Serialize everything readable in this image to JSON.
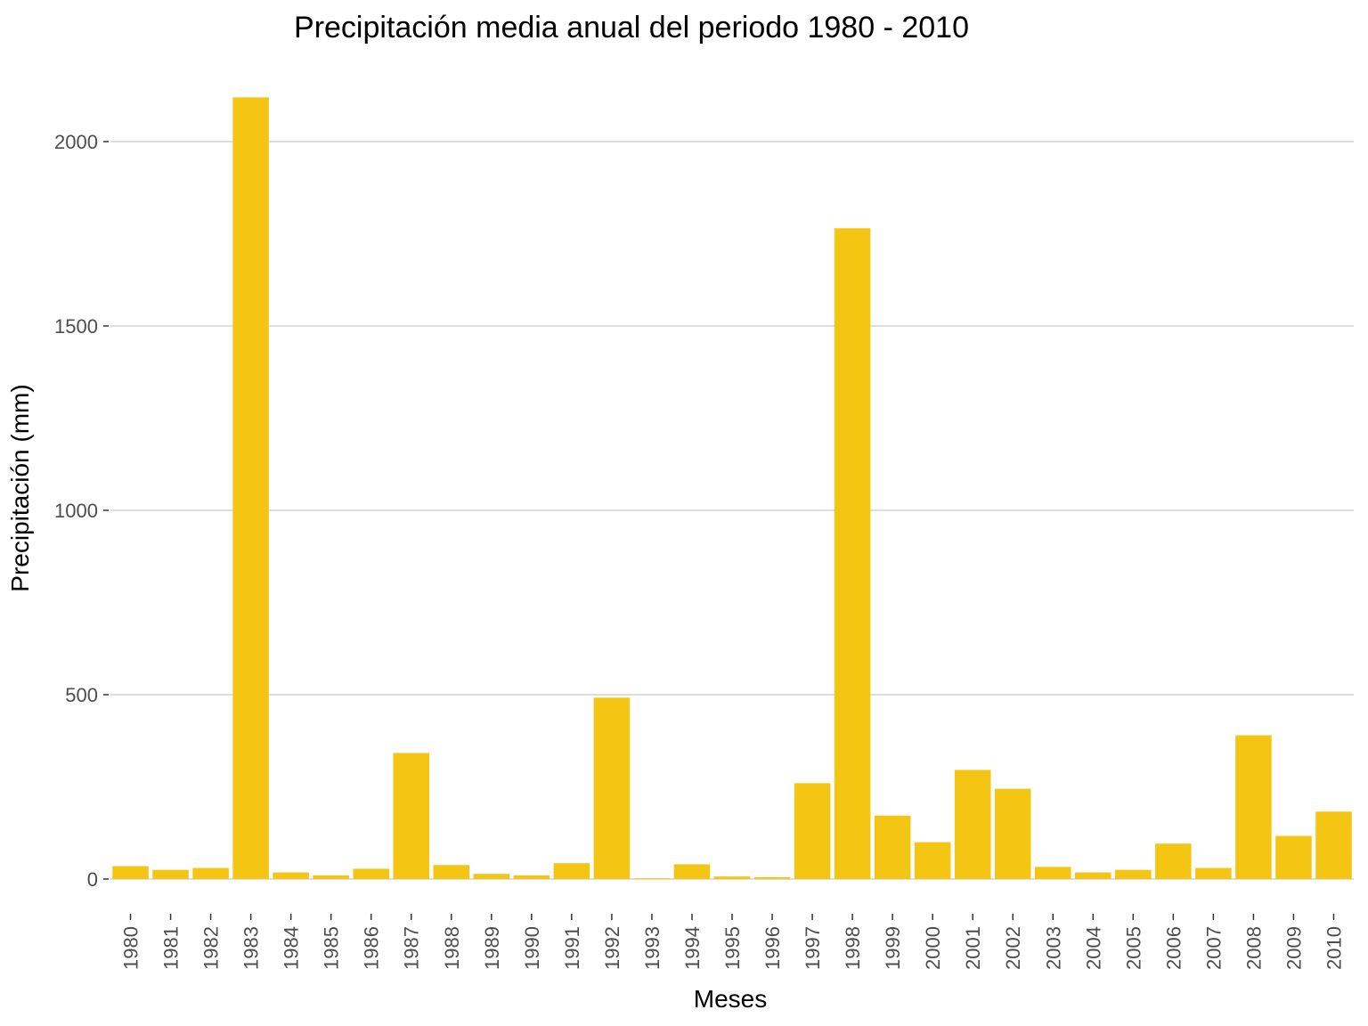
{
  "chart_data": {
    "type": "bar",
    "title": "Precipitación media anual del periodo 1980 - 2010",
    "xlabel": "Meses",
    "ylabel": "Precipitación (mm)",
    "categories": [
      "1980",
      "1981",
      "1982",
      "1983",
      "1984",
      "1985",
      "1986",
      "1987",
      "1988",
      "1989",
      "1990",
      "1991",
      "1992",
      "1993",
      "1994",
      "1995",
      "1996",
      "1997",
      "1998",
      "1999",
      "2000",
      "2001",
      "2002",
      "2003",
      "2004",
      "2005",
      "2006",
      "2007",
      "2008",
      "2009",
      "2010"
    ],
    "values": [
      35,
      25,
      30,
      2120,
      18,
      10,
      28,
      342,
      38,
      14,
      10,
      43,
      492,
      2,
      40,
      7,
      5,
      260,
      1765,
      172,
      100,
      296,
      245,
      33,
      18,
      25,
      96,
      30,
      390,
      117,
      183
    ],
    "ylim": [
      0,
      2200
    ],
    "yticks": [
      0,
      500,
      1000,
      1500,
      2000
    ],
    "grid": "horizontal",
    "bar_color": "#f4c613"
  }
}
